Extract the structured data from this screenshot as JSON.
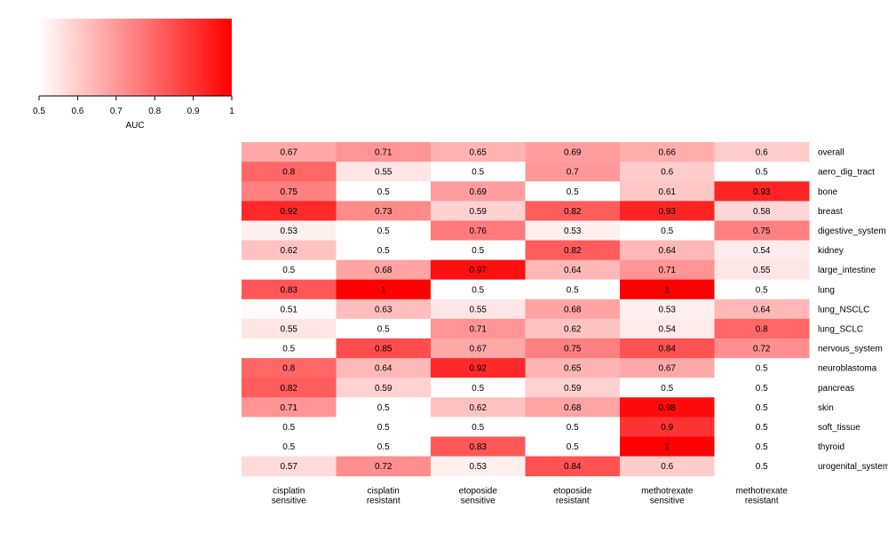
{
  "chart_data": {
    "type": "heatmap",
    "title": "",
    "colorbar": {
      "label": "AUC",
      "range": [
        0.5,
        1
      ],
      "ticks": [
        "0.5",
        "0.6",
        "0.7",
        "0.8",
        "0.9",
        "1"
      ],
      "low_color": "#ffffff",
      "high_color": "#ff0000"
    },
    "columns": [
      [
        "cisplatin",
        "sensitive"
      ],
      [
        "cisplatin",
        "resistant"
      ],
      [
        "etoposide",
        "sensitive"
      ],
      [
        "etoposide",
        "resistant"
      ],
      [
        "methotrexate",
        "sensitive"
      ],
      [
        "methotrexate",
        "resistant"
      ]
    ],
    "rows": [
      "overall",
      "aero_dig_tract",
      "bone",
      "breast",
      "digestive_system",
      "kidney",
      "large_intestine",
      "lung",
      "lung_NSCLC",
      "lung_SCLC",
      "nervous_system",
      "neuroblastoma",
      "pancreas",
      "skin",
      "soft_tissue",
      "thyroid",
      "urogenital_system"
    ],
    "values": [
      [
        0.67,
        0.71,
        0.65,
        0.69,
        0.66,
        0.6
      ],
      [
        0.8,
        0.55,
        0.5,
        0.7,
        0.6,
        0.5
      ],
      [
        0.75,
        0.5,
        0.69,
        0.5,
        0.61,
        0.93
      ],
      [
        0.92,
        0.73,
        0.59,
        0.82,
        0.93,
        0.58
      ],
      [
        0.53,
        0.5,
        0.76,
        0.53,
        0.5,
        0.75
      ],
      [
        0.62,
        0.5,
        0.5,
        0.82,
        0.64,
        0.54
      ],
      [
        0.5,
        0.68,
        0.97,
        0.64,
        0.71,
        0.55
      ],
      [
        0.83,
        1,
        0.5,
        0.5,
        1,
        0.5
      ],
      [
        0.51,
        0.63,
        0.55,
        0.68,
        0.53,
        0.64
      ],
      [
        0.55,
        0.5,
        0.71,
        0.62,
        0.54,
        0.8
      ],
      [
        0.5,
        0.85,
        0.67,
        0.75,
        0.84,
        0.72
      ],
      [
        0.8,
        0.64,
        0.92,
        0.65,
        0.67,
        0.5
      ],
      [
        0.82,
        0.59,
        0.5,
        0.59,
        0.5,
        0.5
      ],
      [
        0.71,
        0.5,
        0.62,
        0.68,
        0.98,
        0.5
      ],
      [
        0.5,
        0.5,
        0.5,
        0.5,
        0.9,
        0.5
      ],
      [
        0.5,
        0.5,
        0.83,
        0.5,
        1,
        0.5
      ],
      [
        0.57,
        0.72,
        0.53,
        0.84,
        0.6,
        0.5
      ]
    ]
  }
}
